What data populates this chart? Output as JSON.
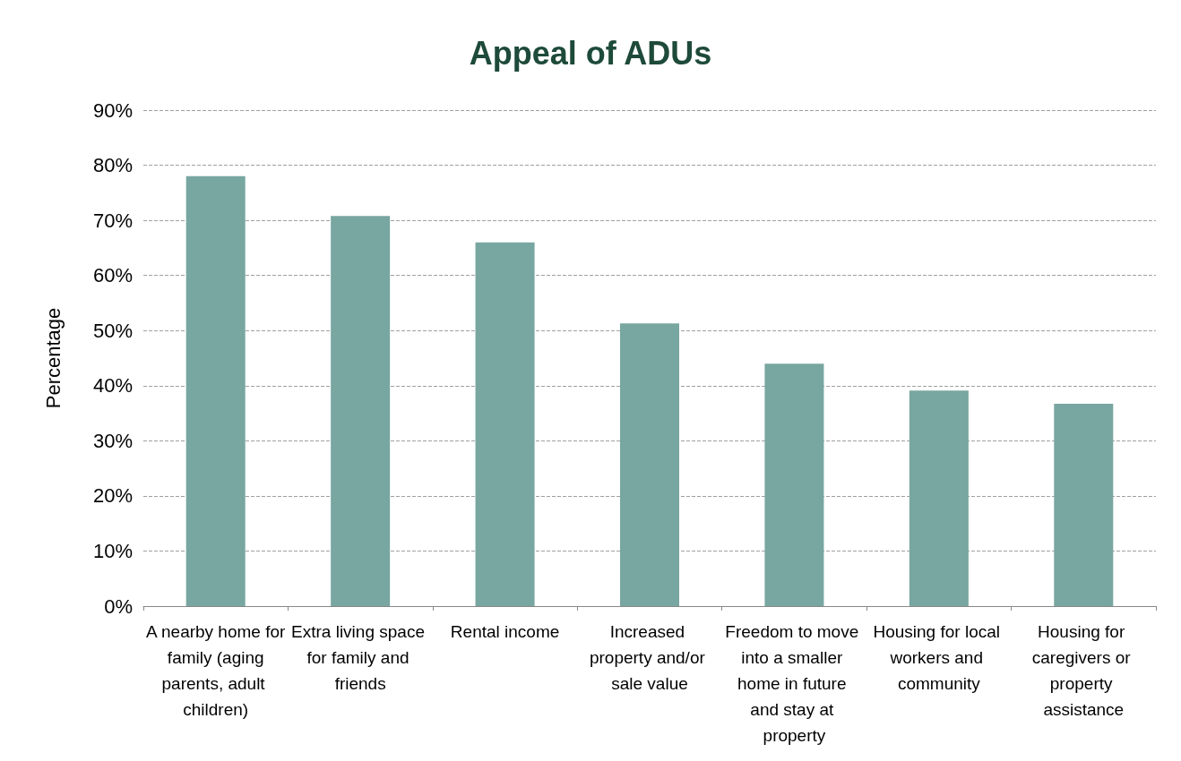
{
  "chart_data": {
    "type": "bar",
    "title": "Appeal of ADUs",
    "ylabel": "Percentage",
    "categories": [
      "A nearby home for family (aging parents, adult children)",
      "Extra living space for family and friends",
      "Rental income",
      "Increased property and/or sale value",
      "Freedom to move into a smaller home in future and stay at property",
      "Housing for local workers and community",
      "Housing for caregivers or property assistance"
    ],
    "values": [
      78,
      70.8,
      66,
      51.3,
      44,
      39.1,
      36.7
    ],
    "color": "#78a6a0",
    "ylim": [
      0,
      90
    ],
    "yticks": [
      {
        "value": 0,
        "label": "0%"
      },
      {
        "value": 10,
        "label": "10%"
      },
      {
        "value": 20,
        "label": "20%"
      },
      {
        "value": 30,
        "label": "30%"
      },
      {
        "value": 40,
        "label": "40%"
      },
      {
        "value": 50,
        "label": "50%"
      },
      {
        "value": 60,
        "label": "60%"
      },
      {
        "value": 70,
        "label": "70%"
      },
      {
        "value": 80,
        "label": "80%"
      },
      {
        "value": 90,
        "label": "90%"
      }
    ],
    "grid": "y"
  }
}
